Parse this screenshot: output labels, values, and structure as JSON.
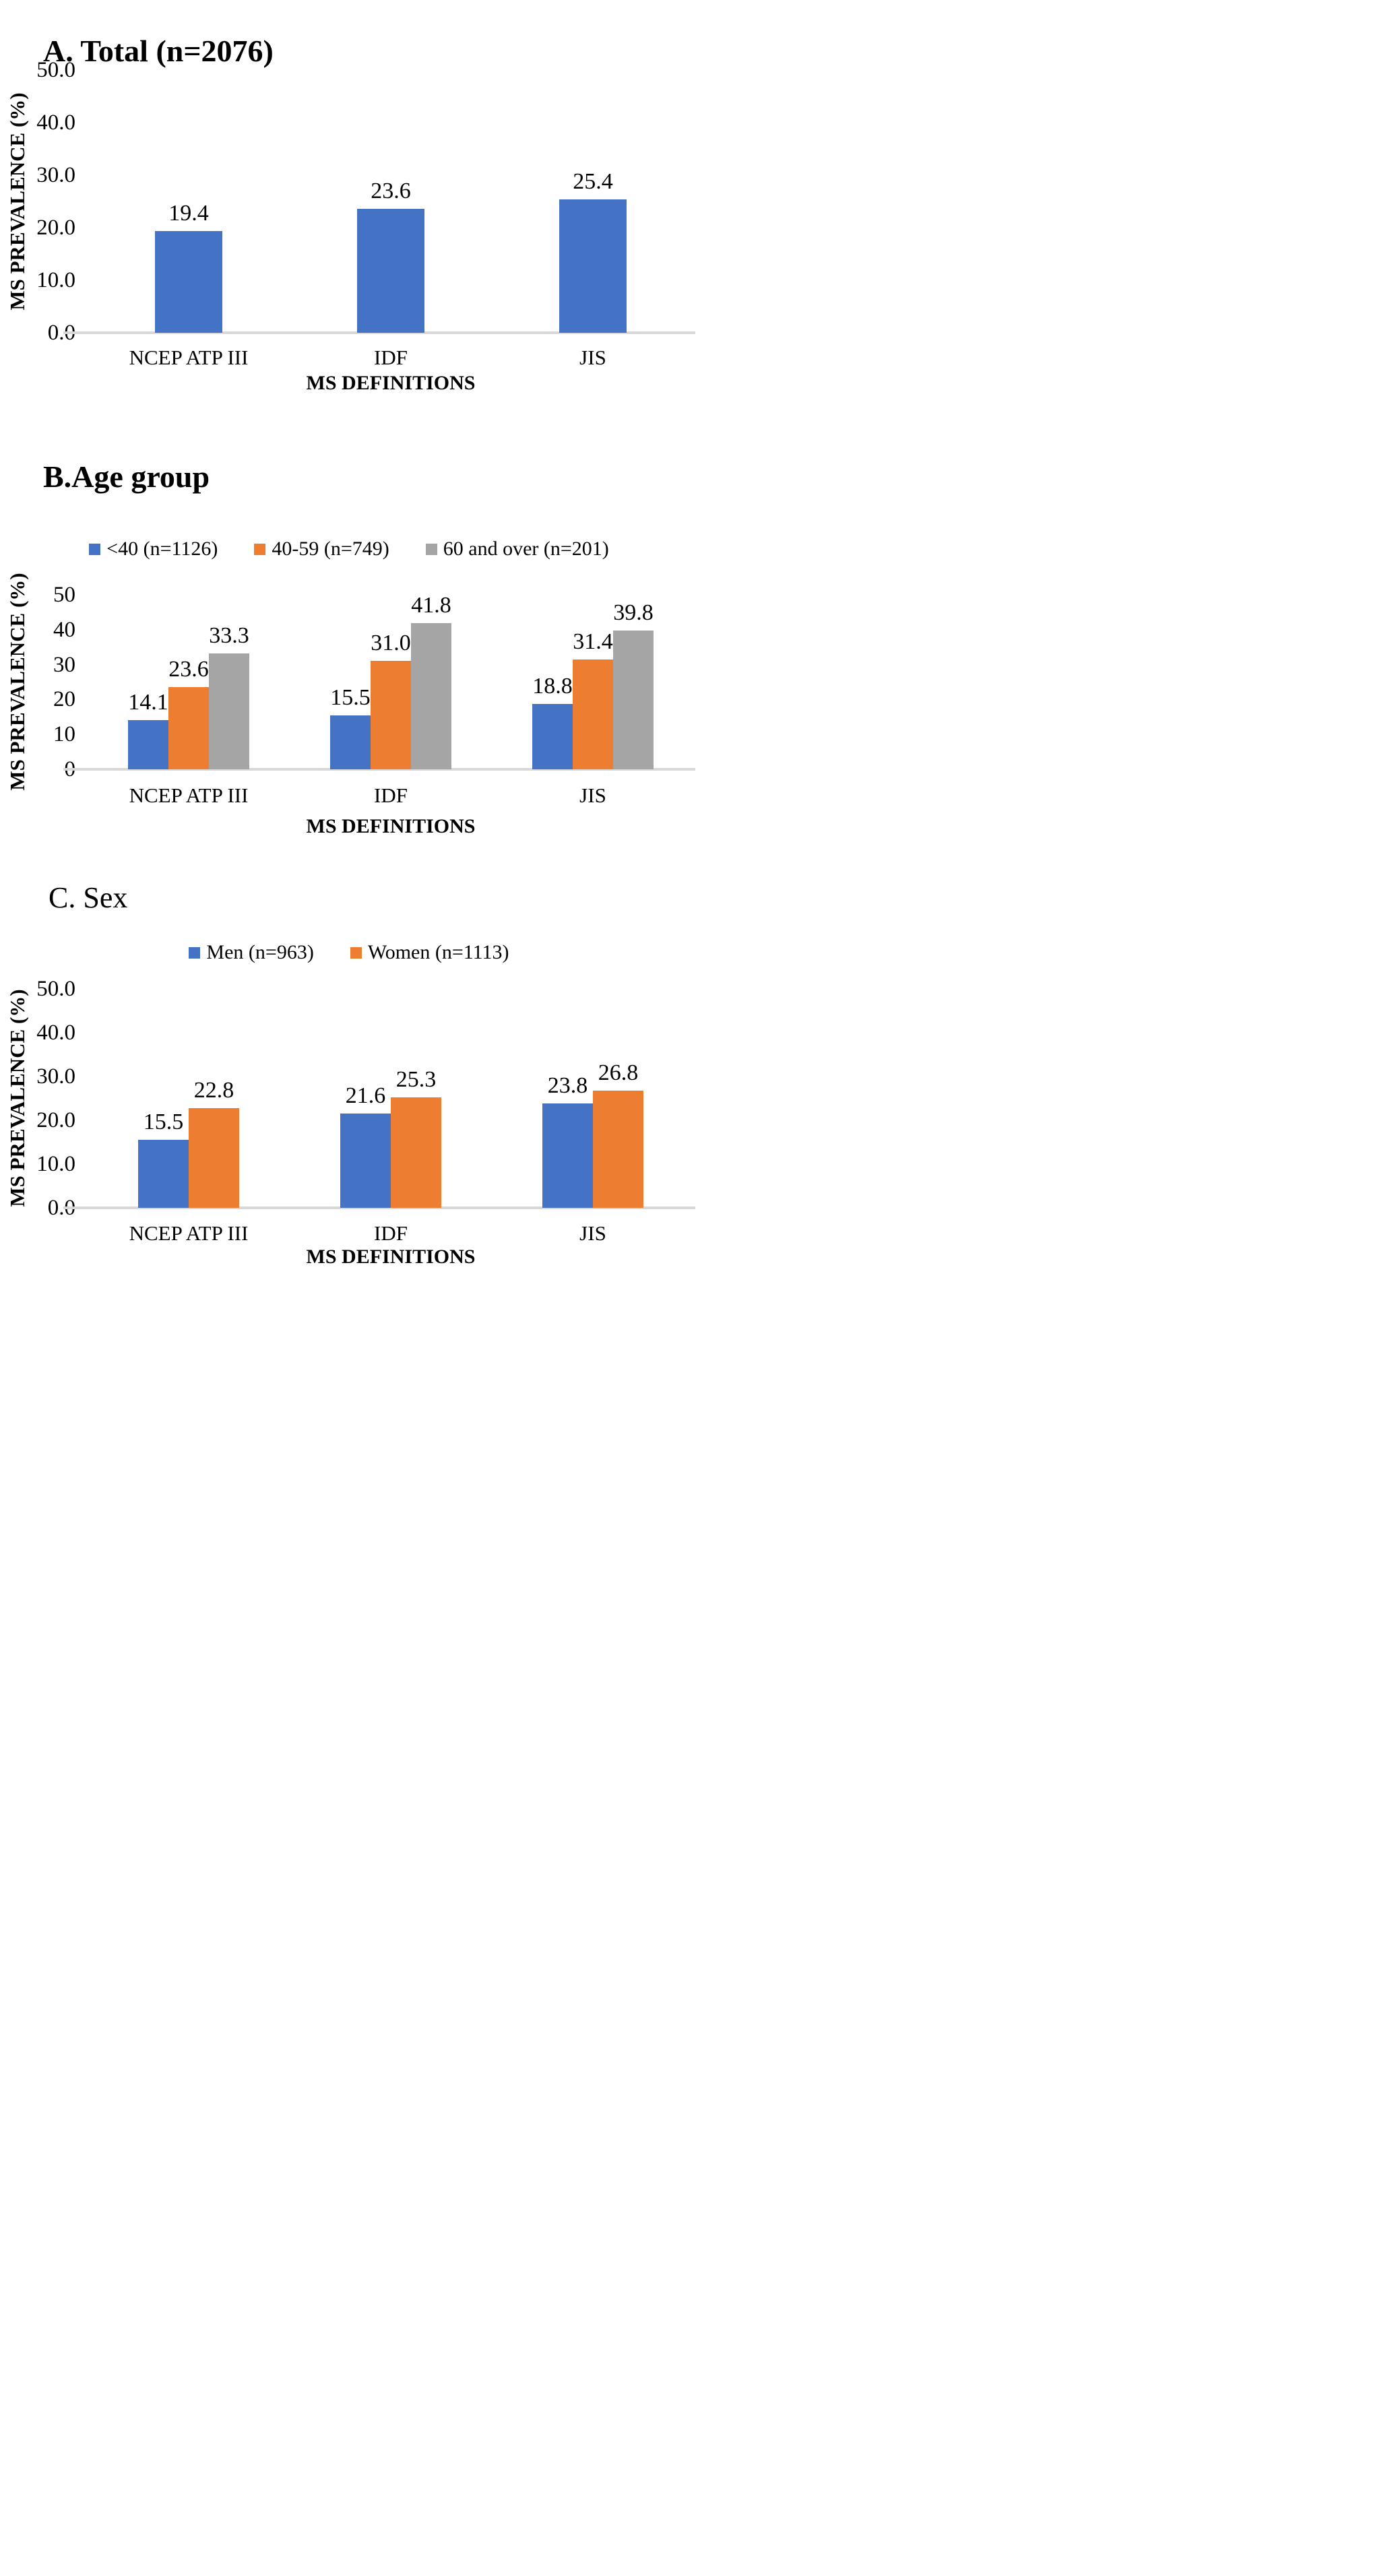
{
  "chart_data": [
    {
      "type": "bar",
      "panel": "A",
      "title": "A. Total (n=2076)",
      "xlabel": "MS DEFINITIONS",
      "ylabel": "MS PREVALENCE (%)",
      "categories": [
        "NCEP ATP III",
        "IDF",
        "JIS"
      ],
      "series": [
        {
          "name": "Total",
          "color": "#4472C4",
          "values": [
            19.4,
            23.6,
            25.4
          ]
        }
      ],
      "ylim": [
        0,
        50
      ],
      "ytick_step": 10,
      "ytick_decimals": 1,
      "data_label_decimals": 1,
      "legend_visible": false,
      "grid": false,
      "axis_line_color": "#d8d8d8"
    },
    {
      "type": "bar",
      "panel": "B",
      "title": "B.Age group",
      "xlabel": "MS DEFINITIONS",
      "ylabel": "MS PREVALENCE (%)",
      "categories": [
        "NCEP ATP III",
        "IDF",
        "JIS"
      ],
      "series": [
        {
          "name": "<40 (n=1126)",
          "color": "#4472C4",
          "values": [
            14.1,
            15.5,
            18.8
          ]
        },
        {
          "name": "40-59 (n=749)",
          "color": "#ED7D31",
          "values": [
            23.6,
            31.0,
            31.4
          ]
        },
        {
          "name": "60 and over (n=201)",
          "color": "#A5A5A5",
          "values": [
            33.3,
            41.8,
            39.8
          ]
        }
      ],
      "ylim": [
        0,
        50
      ],
      "ytick_step": 10,
      "ytick_decimals": 0,
      "data_label_decimals": 1,
      "legend_visible": true,
      "legend_position": "top",
      "grid": false,
      "axis_line_color": "#d8d8d8"
    },
    {
      "type": "bar",
      "panel": "C",
      "title": "C. Sex",
      "xlabel": "MS DEFINITIONS",
      "ylabel": "MS PREVALENCE (%)",
      "categories": [
        "NCEP ATP III",
        "IDF",
        "JIS"
      ],
      "series": [
        {
          "name": "Men (n=963)",
          "color": "#4472C4",
          "values": [
            15.5,
            21.6,
            23.8
          ]
        },
        {
          "name": "Women (n=1113)",
          "color": "#ED7D31",
          "values": [
            22.8,
            25.3,
            26.8
          ]
        }
      ],
      "ylim": [
        0,
        50
      ],
      "ytick_step": 10,
      "ytick_decimals": 1,
      "data_label_decimals": 1,
      "legend_visible": true,
      "legend_position": "top",
      "grid": false,
      "axis_line_color": "#d8d8d8"
    }
  ]
}
